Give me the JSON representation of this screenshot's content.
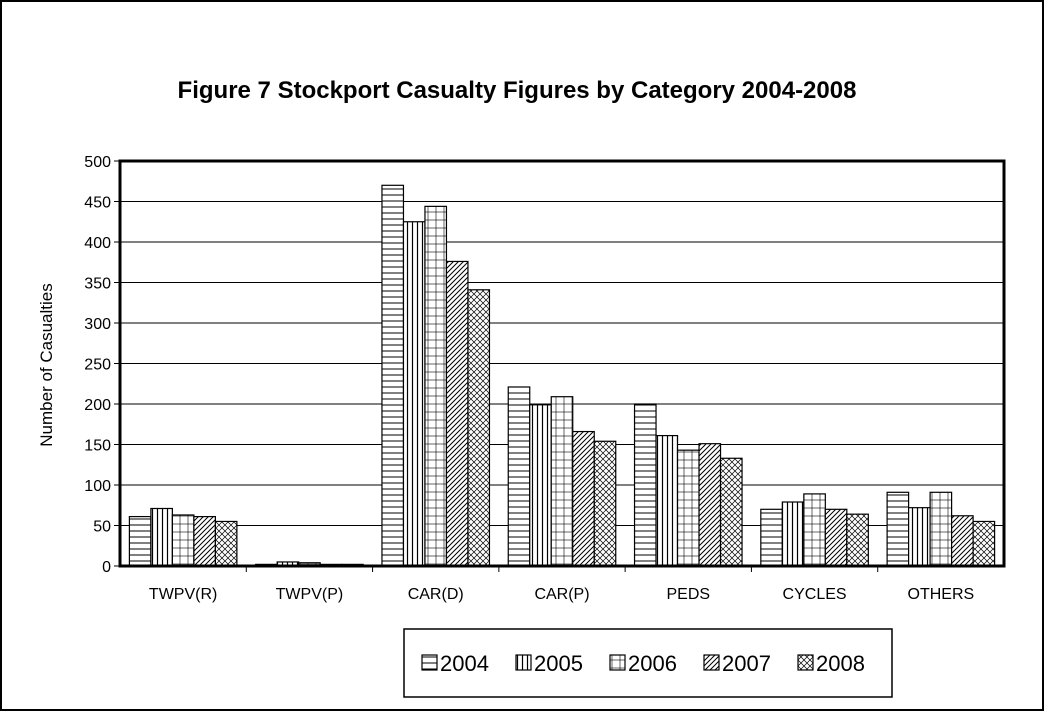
{
  "chart_data": {
    "type": "bar",
    "title": "Figure 7 Stockport Casualty Figures by Category 2004-2008",
    "xlabel": "",
    "ylabel": "Number of Casualties",
    "ylim": [
      0,
      500
    ],
    "yticks": [
      0,
      50,
      100,
      150,
      200,
      250,
      300,
      350,
      400,
      450,
      500
    ],
    "grid": true,
    "legend_position": "bottom",
    "categories": [
      "TWPV(R)",
      "TWPV(P)",
      "CAR(D)",
      "CAR(P)",
      "PEDS",
      "CYCLES",
      "OTHERS"
    ],
    "series": [
      {
        "name": "2004",
        "pattern": "horizontal-lines",
        "values": [
          61,
          2,
          470,
          221,
          200,
          70,
          91
        ]
      },
      {
        "name": "2005",
        "pattern": "vertical-lines",
        "values": [
          71,
          5,
          425,
          199,
          161,
          79,
          72
        ]
      },
      {
        "name": "2006",
        "pattern": "grid",
        "values": [
          63,
          4,
          444,
          209,
          143,
          89,
          91
        ]
      },
      {
        "name": "2007",
        "pattern": "diagonal",
        "values": [
          61,
          2,
          376,
          166,
          151,
          70,
          62
        ]
      },
      {
        "name": "2008",
        "pattern": "crosshatch",
        "values": [
          55,
          2,
          341,
          154,
          133,
          64,
          55
        ]
      }
    ]
  }
}
